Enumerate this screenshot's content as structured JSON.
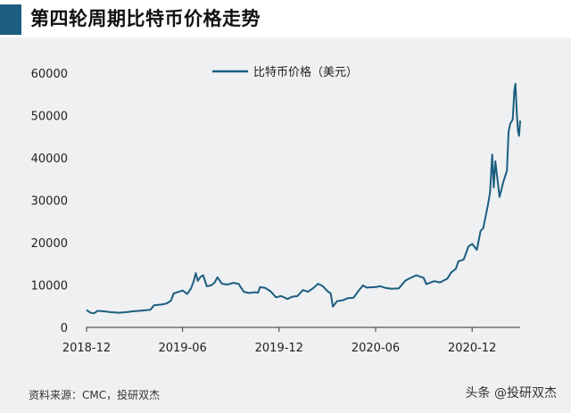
{
  "title": "第四轮周期比特币价格走势",
  "source": "资料来源：CMC，投研双杰",
  "watermark": "头条 @投研双杰",
  "colors": {
    "accent": "#1d5e80",
    "line": "#1d5e80",
    "panel": "#eef0f2"
  },
  "chart_data": {
    "type": "line",
    "title": "",
    "xlabel": "",
    "ylabel": "",
    "legend": "top-center",
    "grid": false,
    "ylim": [
      0,
      60000
    ],
    "yticks": [
      "0",
      "10000",
      "20000",
      "30000",
      "40000",
      "50000",
      "60000"
    ],
    "xticks": [
      "2018-12",
      "2019-06",
      "2019-12",
      "2020-06",
      "2020-12"
    ],
    "series": [
      {
        "name": "比特币价格（美元）",
        "points": [
          [
            "2018-12-01",
            4100
          ],
          [
            "2018-12-08",
            3500
          ],
          [
            "2018-12-15",
            3300
          ],
          [
            "2018-12-22",
            3900
          ],
          [
            "2019-01-01",
            3800
          ],
          [
            "2019-01-15",
            3600
          ],
          [
            "2019-02-01",
            3450
          ],
          [
            "2019-02-15",
            3600
          ],
          [
            "2019-03-01",
            3800
          ],
          [
            "2019-03-15",
            3950
          ],
          [
            "2019-04-01",
            4150
          ],
          [
            "2019-04-08",
            5200
          ],
          [
            "2019-04-22",
            5400
          ],
          [
            "2019-05-01",
            5600
          ],
          [
            "2019-05-10",
            6300
          ],
          [
            "2019-05-15",
            8000
          ],
          [
            "2019-05-25",
            8400
          ],
          [
            "2019-06-01",
            8700
          ],
          [
            "2019-06-10",
            7900
          ],
          [
            "2019-06-17",
            9200
          ],
          [
            "2019-06-22",
            10800
          ],
          [
            "2019-06-26",
            12800
          ],
          [
            "2019-06-30",
            11000
          ],
          [
            "2019-07-05",
            11900
          ],
          [
            "2019-07-10",
            12300
          ],
          [
            "2019-07-17",
            9700
          ],
          [
            "2019-07-25",
            9900
          ],
          [
            "2019-08-01",
            10600
          ],
          [
            "2019-08-06",
            11800
          ],
          [
            "2019-08-15",
            10300
          ],
          [
            "2019-08-25",
            10100
          ],
          [
            "2019-09-05",
            10500
          ],
          [
            "2019-09-15",
            10300
          ],
          [
            "2019-09-25",
            8400
          ],
          [
            "2019-10-05",
            8100
          ],
          [
            "2019-10-15",
            8300
          ],
          [
            "2019-10-22",
            8200
          ],
          [
            "2019-10-26",
            9500
          ],
          [
            "2019-11-05",
            9300
          ],
          [
            "2019-11-15",
            8500
          ],
          [
            "2019-11-25",
            7100
          ],
          [
            "2019-12-05",
            7400
          ],
          [
            "2019-12-17",
            6700
          ],
          [
            "2019-12-25",
            7200
          ],
          [
            "2020-01-05",
            7400
          ],
          [
            "2020-01-15",
            8800
          ],
          [
            "2020-01-25",
            8400
          ],
          [
            "2020-02-05",
            9400
          ],
          [
            "2020-02-13",
            10300
          ],
          [
            "2020-02-22",
            9700
          ],
          [
            "2020-03-01",
            8600
          ],
          [
            "2020-03-08",
            8000
          ],
          [
            "2020-03-12",
            4900
          ],
          [
            "2020-03-20",
            6200
          ],
          [
            "2020-03-31",
            6400
          ],
          [
            "2020-04-10",
            6900
          ],
          [
            "2020-04-20",
            7000
          ],
          [
            "2020-04-30",
            8700
          ],
          [
            "2020-05-08",
            9900
          ],
          [
            "2020-05-15",
            9400
          ],
          [
            "2020-05-31",
            9500
          ],
          [
            "2020-06-10",
            9700
          ],
          [
            "2020-06-20",
            9300
          ],
          [
            "2020-07-01",
            9100
          ],
          [
            "2020-07-15",
            9200
          ],
          [
            "2020-07-27",
            11000
          ],
          [
            "2020-08-05",
            11600
          ],
          [
            "2020-08-17",
            12300
          ],
          [
            "2020-08-31",
            11700
          ],
          [
            "2020-09-05",
            10200
          ],
          [
            "2020-09-20",
            10900
          ],
          [
            "2020-10-01",
            10600
          ],
          [
            "2020-10-15",
            11500
          ],
          [
            "2020-10-22",
            12900
          ],
          [
            "2020-10-31",
            13800
          ],
          [
            "2020-11-05",
            15600
          ],
          [
            "2020-11-15",
            16000
          ],
          [
            "2020-11-24",
            19100
          ],
          [
            "2020-12-01",
            19700
          ],
          [
            "2020-12-10",
            18300
          ],
          [
            "2020-12-17",
            22800
          ],
          [
            "2020-12-22",
            23400
          ],
          [
            "2020-12-31",
            28900
          ],
          [
            "2021-01-04",
            31900
          ],
          [
            "2021-01-08",
            40800
          ],
          [
            "2021-01-11",
            33000
          ],
          [
            "2021-01-14",
            39200
          ],
          [
            "2021-01-22",
            30800
          ],
          [
            "2021-01-29",
            34300
          ],
          [
            "2021-02-05",
            37000
          ],
          [
            "2021-02-08",
            46100
          ],
          [
            "2021-02-11",
            48000
          ],
          [
            "2021-02-16",
            49100
          ],
          [
            "2021-02-19",
            55900
          ],
          [
            "2021-02-21",
            57500
          ],
          [
            "2021-02-24",
            49600
          ],
          [
            "2021-02-26",
            46300
          ],
          [
            "2021-02-28",
            45200
          ],
          [
            "2021-03-02",
            48800
          ]
        ]
      }
    ]
  }
}
